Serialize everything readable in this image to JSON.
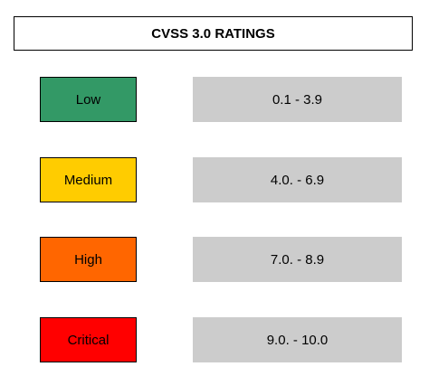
{
  "title": "CVSS 3.0 RATINGS",
  "ratings": [
    {
      "label": "Low",
      "range": "0.1 - 3.9",
      "color": "#339966"
    },
    {
      "label": "Medium",
      "range": "4.0. - 6.9",
      "color": "#ffcc00"
    },
    {
      "label": "High",
      "range": "7.0. - 8.9",
      "color": "#ff6600"
    },
    {
      "label": "Critical",
      "range": "9.0. - 10.0",
      "color": "#ff0000"
    }
  ]
}
